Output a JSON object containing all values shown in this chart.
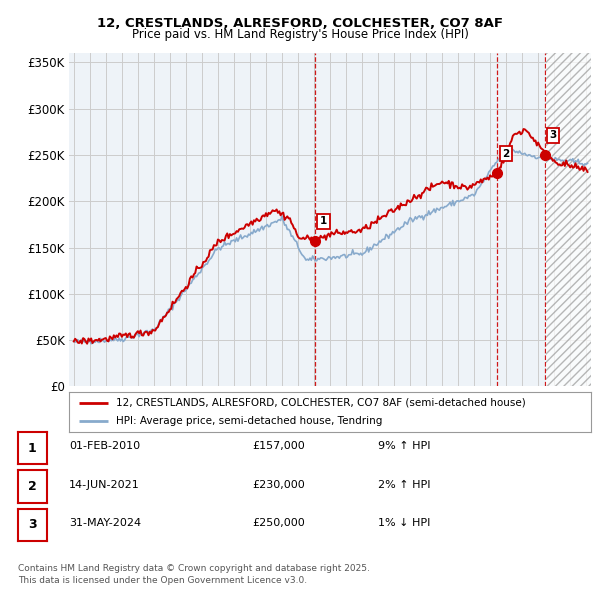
{
  "title": "12, CRESTLANDS, ALRESFORD, COLCHESTER, CO7 8AF",
  "subtitle": "Price paid vs. HM Land Registry's House Price Index (HPI)",
  "line1_label": "12, CRESTLANDS, ALRESFORD, COLCHESTER, CO7 8AF (semi-detached house)",
  "line2_label": "HPI: Average price, semi-detached house, Tendring",
  "transactions": [
    {
      "num": 1,
      "date": "01-FEB-2010",
      "price": "£157,000",
      "pct": "9% ↑ HPI",
      "year": 2010.08,
      "value": 157000
    },
    {
      "num": 2,
      "date": "14-JUN-2021",
      "price": "£230,000",
      "pct": "2% ↑ HPI",
      "year": 2021.45,
      "value": 230000
    },
    {
      "num": 3,
      "date": "31-MAY-2024",
      "price": "£250,000",
      "pct": "1% ↓ HPI",
      "year": 2024.41,
      "value": 250000
    }
  ],
  "footnote": "Contains HM Land Registry data © Crown copyright and database right 2025.\nThis data is licensed under the Open Government Licence v3.0.",
  "ylim": [
    0,
    360000
  ],
  "yticks": [
    0,
    50000,
    100000,
    150000,
    200000,
    250000,
    300000,
    350000
  ],
  "ytick_labels": [
    "£0",
    "£50K",
    "£100K",
    "£150K",
    "£200K",
    "£250K",
    "£300K",
    "£350K"
  ],
  "xlim_start": 1994.7,
  "xlim_end": 2027.3,
  "price_color": "#cc0000",
  "hpi_color": "#88aacc",
  "grid_color": "#cccccc",
  "plot_bg": "#eef3f8",
  "hatch_start": 2024.5
}
